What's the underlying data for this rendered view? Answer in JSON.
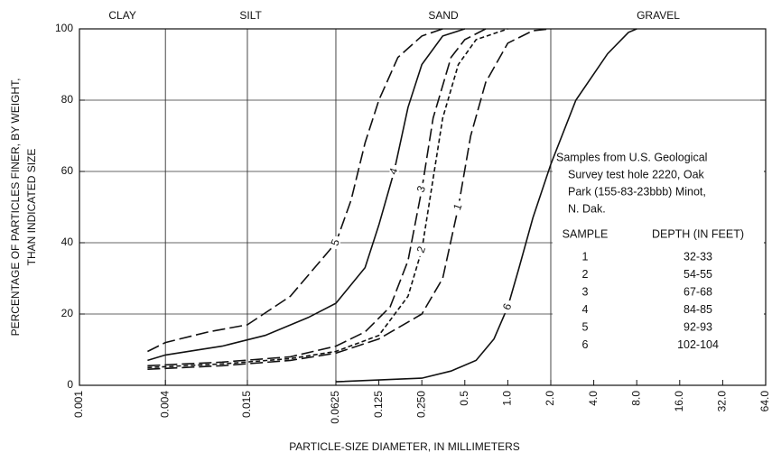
{
  "chart_data": {
    "type": "line",
    "x_label": "PARTICLE-SIZE DIAMETER, IN MILLIMETERS",
    "y_label": [
      "PERCENTAGE OF PARTICLES FINER, BY WEIGHT,",
      "THAN INDICATED SIZE"
    ],
    "xscale": "log",
    "xlim": [
      0.001,
      64
    ],
    "ylim": [
      0,
      100
    ],
    "xticks": [
      0.001,
      0.004,
      0.015,
      0.0625,
      0.125,
      {
        "value": 0.25,
        "label": "0.250"
      },
      0.5,
      {
        "value": 1,
        "label": "1.0"
      },
      {
        "value": 2,
        "label": "2.0"
      },
      {
        "value": 4,
        "label": "4.0"
      },
      {
        "value": 8,
        "label": "8.0"
      },
      {
        "value": 16,
        "label": "16.0"
      },
      {
        "value": 32,
        "label": "32.0"
      },
      {
        "value": 64,
        "label": "64.0"
      }
    ],
    "yticks": [
      0,
      20,
      40,
      60,
      80,
      100
    ],
    "grid": true,
    "x_grid": [
      0.004,
      0.015,
      0.0625,
      2
    ],
    "regions": [
      {
        "label": "CLAY",
        "from": 0.001,
        "to": 0.004
      },
      {
        "label": "SILT",
        "from": 0.004,
        "to": 0.0625
      },
      {
        "label": "SAND",
        "from": 0.0625,
        "to": 2
      },
      {
        "label": "GRAVEL",
        "from": 2,
        "to": 64
      }
    ],
    "series": [
      {
        "name": "1",
        "color": "#111111",
        "dash": "long",
        "x": [
          0.003,
          0.01,
          0.03,
          0.0625,
          0.125,
          0.25,
          0.35,
          0.45,
          0.55,
          0.7,
          1.0,
          1.5,
          2.0
        ],
        "values": [
          4.5,
          5.5,
          7,
          9,
          13,
          20,
          30,
          50,
          70,
          85,
          96,
          99.5,
          100
        ]
      },
      {
        "name": "2",
        "color": "#111111",
        "dash": "short",
        "x": [
          0.003,
          0.01,
          0.03,
          0.0625,
          0.125,
          0.2,
          0.25,
          0.3,
          0.35,
          0.45,
          0.6,
          1.0
        ],
        "values": [
          5,
          6,
          7.5,
          9.5,
          14,
          25,
          38,
          58,
          75,
          90,
          97,
          100
        ]
      },
      {
        "name": "3",
        "color": "#111111",
        "dash": "long",
        "x": [
          0.003,
          0.01,
          0.03,
          0.0625,
          0.1,
          0.15,
          0.2,
          0.25,
          0.3,
          0.4,
          0.5,
          0.7
        ],
        "values": [
          5.5,
          6.5,
          8,
          11,
          15,
          22,
          35,
          55,
          75,
          92,
          97,
          100
        ]
      },
      {
        "name": "4",
        "color": "#111111",
        "dash": "solid",
        "x": [
          0.003,
          0.004,
          0.01,
          0.02,
          0.04,
          0.0625,
          0.1,
          0.125,
          0.16,
          0.2,
          0.25,
          0.35,
          0.5
        ],
        "values": [
          7,
          8.5,
          11,
          14,
          19,
          23,
          33,
          45,
          60,
          78,
          90,
          98,
          100
        ]
      },
      {
        "name": "5",
        "color": "#111111",
        "dash": "long",
        "x": [
          0.003,
          0.004,
          0.008,
          0.015,
          0.03,
          0.0625,
          0.08,
          0.1,
          0.125,
          0.17,
          0.25,
          0.35
        ],
        "values": [
          9.5,
          12,
          15,
          17,
          25,
          40,
          52,
          68,
          80,
          92,
          98,
          100
        ]
      },
      {
        "name": "6",
        "color": "#111111",
        "dash": "solid",
        "x": [
          0.0625,
          0.25,
          0.4,
          0.6,
          0.8,
          1.0,
          1.2,
          1.5,
          2.0,
          3.0,
          5.0,
          7.0,
          8.0
        ],
        "values": [
          1,
          2,
          4,
          7,
          13,
          22,
          33,
          47,
          62,
          80,
          93,
          99,
          100
        ]
      }
    ],
    "annotation": [
      "Samples from U.S. Geological",
      "Survey test hole 2220, Oak",
      "Park (155-83-23bbb) Minot,",
      "N. Dak."
    ],
    "sample_table": {
      "headers": [
        "SAMPLE",
        "DEPTH (IN FEET)"
      ],
      "rows": [
        [
          "1",
          "32-33"
        ],
        [
          "2",
          "54-55"
        ],
        [
          "3",
          "67-68"
        ],
        [
          "4",
          "84-85"
        ],
        [
          "5",
          "92-93"
        ],
        [
          "6",
          "102-104"
        ]
      ]
    }
  }
}
